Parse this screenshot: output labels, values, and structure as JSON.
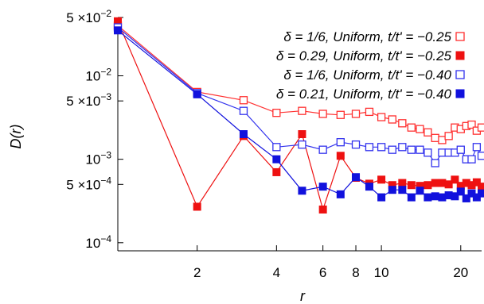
{
  "chart_data": {
    "type": "scatter",
    "title": "",
    "xlabel": "r",
    "ylabel": "D(r)",
    "x_scale": "log",
    "y_scale": "log",
    "xlim": [
      1,
      24
    ],
    "ylim": [
      8e-05,
      0.05
    ],
    "x_ticks": [
      {
        "value": 2,
        "label": "2"
      },
      {
        "value": 4,
        "label": "4"
      },
      {
        "value": 6,
        "label": "6"
      },
      {
        "value": 8,
        "label": "8"
      },
      {
        "value": 10,
        "label": "10"
      },
      {
        "value": 20,
        "label": "20"
      }
    ],
    "y_ticks": [
      {
        "value": 0.05,
        "base": "5 ×10",
        "exp": "−2"
      },
      {
        "value": 0.01,
        "base": "10",
        "exp": "−2"
      },
      {
        "value": 0.005,
        "base": "5 ×10",
        "exp": "−3"
      },
      {
        "value": 0.001,
        "base": "10",
        "exp": "−3"
      },
      {
        "value": 0.0005,
        "base": "5 ×10",
        "exp": "−4"
      },
      {
        "value": 0.0001,
        "base": "10",
        "exp": "−4"
      }
    ],
    "grid": false,
    "legend_position": "top-right",
    "series": [
      {
        "name": "δ = 1/6, Uniform, t/t' = −0.25",
        "color": "#ff3030",
        "marker": "open-square",
        "x": [
          1,
          2,
          3,
          4,
          5,
          6,
          7,
          8,
          9,
          10,
          11,
          12,
          13,
          14,
          15,
          16,
          17,
          18,
          19,
          20,
          21,
          22,
          23,
          24
        ],
        "y": [
          0.04,
          0.0064,
          0.0051,
          0.0036,
          0.0038,
          0.0035,
          0.0034,
          0.0035,
          0.0037,
          0.0032,
          0.003,
          0.0027,
          0.0024,
          0.0023,
          0.0021,
          0.0018,
          0.0017,
          0.0019,
          0.0024,
          0.0023,
          0.0025,
          0.0026,
          0.0022,
          0.0024
        ]
      },
      {
        "name": "δ = 0.29, Uniform, t/t' = −0.25",
        "color": "#ee1111",
        "marker": "filled-square",
        "x": [
          1,
          2,
          3,
          4,
          5,
          6,
          7,
          8,
          9,
          10,
          11,
          12,
          13,
          14,
          15,
          16,
          17,
          18,
          19,
          20,
          21,
          22,
          23,
          24
        ],
        "y": [
          0.045,
          0.00027,
          0.0019,
          0.0007,
          0.002,
          0.00025,
          0.0011,
          0.0006,
          0.00051,
          0.00057,
          0.00049,
          0.00052,
          0.00049,
          0.00048,
          0.00049,
          0.00052,
          0.00052,
          0.0005,
          0.00057,
          0.00048,
          0.00052,
          0.00049,
          0.00053,
          0.00047
        ]
      },
      {
        "name": "δ = 1/6, Uniform, t/t' = −0.40",
        "color": "#3333ee",
        "marker": "open-square",
        "x": [
          1,
          2,
          3,
          4,
          5,
          6,
          7,
          8,
          9,
          10,
          11,
          12,
          13,
          14,
          15,
          16,
          17,
          18,
          19,
          20,
          21,
          22,
          23,
          24
        ],
        "y": [
          0.038,
          0.0062,
          0.0038,
          0.0014,
          0.0015,
          0.0013,
          0.0016,
          0.0015,
          0.0014,
          0.0014,
          0.0013,
          0.0014,
          0.0013,
          0.0013,
          0.0012,
          0.0009,
          0.0012,
          0.0012,
          0.0012,
          0.0013,
          0.001,
          0.001,
          0.0014,
          0.0011
        ]
      },
      {
        "name": "δ = 0.21, Uniform, t/t' = −0.40",
        "color": "#1111dd",
        "marker": "filled-square",
        "x": [
          1,
          2,
          3,
          4,
          5,
          6,
          7,
          8,
          9,
          10,
          11,
          12,
          13,
          14,
          15,
          16,
          17,
          18,
          19,
          20,
          21,
          22,
          23,
          24
        ],
        "y": [
          0.035,
          0.006,
          0.002,
          0.001,
          0.00042,
          0.00047,
          0.00038,
          0.00061,
          0.00047,
          0.00035,
          0.00043,
          0.00043,
          0.00035,
          0.00042,
          0.00035,
          0.00036,
          0.00035,
          0.00037,
          0.00036,
          0.00041,
          0.00034,
          0.00039,
          0.00035,
          0.00039
        ]
      }
    ]
  }
}
